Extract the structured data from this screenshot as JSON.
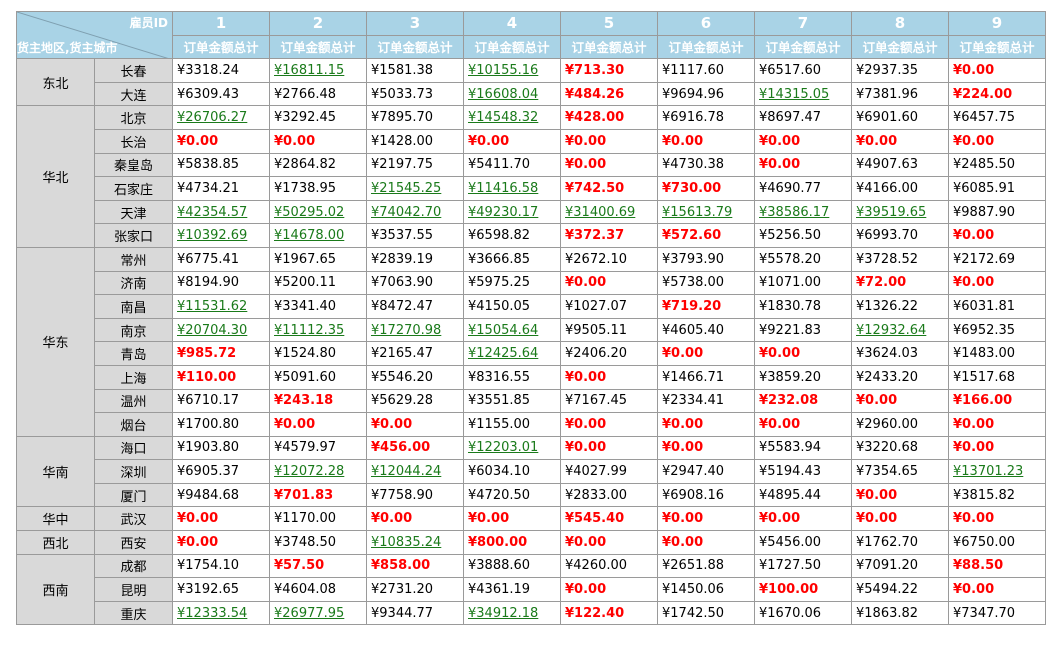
{
  "header": {
    "corner_top": "雇员ID",
    "corner_bottom": "货主地区,货主城市",
    "employee_ids": [
      "1",
      "2",
      "3",
      "4",
      "5",
      "6",
      "7",
      "8",
      "9"
    ],
    "measure_label": "订单金额总计"
  },
  "colors": {
    "header_bg": "#a9d3e6",
    "high": "#1a7a1a",
    "low": "#ff0000",
    "label_bg": "#d9d9d9"
  },
  "chart_data": {
    "type": "table",
    "columns": [
      "1",
      "2",
      "3",
      "4",
      "5",
      "6",
      "7",
      "8",
      "9"
    ],
    "regions": [
      {
        "name": "东北",
        "cities": [
          {
            "city": "长春",
            "values": [
              "¥3318.24",
              "¥16811.15",
              "¥1581.38",
              "¥10155.16",
              "¥713.30",
              "¥1117.60",
              "¥6517.60",
              "¥2937.35",
              "¥0.00"
            ],
            "styles": [
              "n",
              "h",
              "n",
              "h",
              "l",
              "n",
              "n",
              "n",
              "l"
            ]
          },
          {
            "city": "大连",
            "values": [
              "¥6309.43",
              "¥2766.48",
              "¥5033.73",
              "¥16608.04",
              "¥484.26",
              "¥9694.96",
              "¥14315.05",
              "¥7381.96",
              "¥224.00"
            ],
            "styles": [
              "n",
              "n",
              "n",
              "h",
              "l",
              "n",
              "h",
              "n",
              "l"
            ]
          }
        ]
      },
      {
        "name": "华北",
        "cities": [
          {
            "city": "北京",
            "values": [
              "¥26706.27",
              "¥3292.45",
              "¥7895.70",
              "¥14548.32",
              "¥428.00",
              "¥6916.78",
              "¥8697.47",
              "¥6901.60",
              "¥6457.75"
            ],
            "styles": [
              "h",
              "n",
              "n",
              "h",
              "l",
              "n",
              "n",
              "n",
              "n"
            ]
          },
          {
            "city": "长治",
            "values": [
              "¥0.00",
              "¥0.00",
              "¥1428.00",
              "¥0.00",
              "¥0.00",
              "¥0.00",
              "¥0.00",
              "¥0.00",
              "¥0.00"
            ],
            "styles": [
              "l",
              "l",
              "n",
              "l",
              "l",
              "l",
              "l",
              "l",
              "l"
            ]
          },
          {
            "city": "秦皇岛",
            "values": [
              "¥5838.85",
              "¥2864.82",
              "¥2197.75",
              "¥5411.70",
              "¥0.00",
              "¥4730.38",
              "¥0.00",
              "¥4907.63",
              "¥2485.50"
            ],
            "styles": [
              "n",
              "n",
              "n",
              "n",
              "l",
              "n",
              "l",
              "n",
              "n"
            ]
          },
          {
            "city": "石家庄",
            "values": [
              "¥4734.21",
              "¥1738.95",
              "¥21545.25",
              "¥11416.58",
              "¥742.50",
              "¥730.00",
              "¥4690.77",
              "¥4166.00",
              "¥6085.91"
            ],
            "styles": [
              "n",
              "n",
              "h",
              "h",
              "l",
              "l",
              "n",
              "n",
              "n"
            ]
          },
          {
            "city": "天津",
            "values": [
              "¥42354.57",
              "¥50295.02",
              "¥74042.70",
              "¥49230.17",
              "¥31400.69",
              "¥15613.79",
              "¥38586.17",
              "¥39519.65",
              "¥9887.90"
            ],
            "styles": [
              "h",
              "h",
              "h",
              "h",
              "h",
              "h",
              "h",
              "h",
              "n"
            ]
          },
          {
            "city": "张家口",
            "values": [
              "¥10392.69",
              "¥14678.00",
              "¥3537.55",
              "¥6598.82",
              "¥372.37",
              "¥572.60",
              "¥5256.50",
              "¥6993.70",
              "¥0.00"
            ],
            "styles": [
              "h",
              "h",
              "n",
              "n",
              "l",
              "l",
              "n",
              "n",
              "l"
            ]
          }
        ]
      },
      {
        "name": "华东",
        "cities": [
          {
            "city": "常州",
            "values": [
              "¥6775.41",
              "¥1967.65",
              "¥2839.19",
              "¥3666.85",
              "¥2672.10",
              "¥3793.90",
              "¥5578.20",
              "¥3728.52",
              "¥2172.69"
            ],
            "styles": [
              "n",
              "n",
              "n",
              "n",
              "n",
              "n",
              "n",
              "n",
              "n"
            ]
          },
          {
            "city": "济南",
            "values": [
              "¥8194.90",
              "¥5200.11",
              "¥7063.90",
              "¥5975.25",
              "¥0.00",
              "¥5738.00",
              "¥1071.00",
              "¥72.00",
              "¥0.00"
            ],
            "styles": [
              "n",
              "n",
              "n",
              "n",
              "l",
              "n",
              "n",
              "l",
              "l"
            ]
          },
          {
            "city": "南昌",
            "values": [
              "¥11531.62",
              "¥3341.40",
              "¥8472.47",
              "¥4150.05",
              "¥1027.07",
              "¥719.20",
              "¥1830.78",
              "¥1326.22",
              "¥6031.81"
            ],
            "styles": [
              "h",
              "n",
              "n",
              "n",
              "n",
              "l",
              "n",
              "n",
              "n"
            ]
          },
          {
            "city": "南京",
            "values": [
              "¥20704.30",
              "¥11112.35",
              "¥17270.98",
              "¥15054.64",
              "¥9505.11",
              "¥4605.40",
              "¥9221.83",
              "¥12932.64",
              "¥6952.35"
            ],
            "styles": [
              "h",
              "h",
              "h",
              "h",
              "n",
              "n",
              "n",
              "h",
              "n"
            ]
          },
          {
            "city": "青岛",
            "values": [
              "¥985.72",
              "¥1524.80",
              "¥2165.47",
              "¥12425.64",
              "¥2406.20",
              "¥0.00",
              "¥0.00",
              "¥3624.03",
              "¥1483.00"
            ],
            "styles": [
              "l",
              "n",
              "n",
              "h",
              "n",
              "l",
              "l",
              "n",
              "n"
            ]
          },
          {
            "city": "上海",
            "values": [
              "¥110.00",
              "¥5091.60",
              "¥5546.20",
              "¥8316.55",
              "¥0.00",
              "¥1466.71",
              "¥3859.20",
              "¥2433.20",
              "¥1517.68"
            ],
            "styles": [
              "l",
              "n",
              "n",
              "n",
              "l",
              "n",
              "n",
              "n",
              "n"
            ]
          },
          {
            "city": "温州",
            "values": [
              "¥6710.17",
              "¥243.18",
              "¥5629.28",
              "¥3551.85",
              "¥7167.45",
              "¥2334.41",
              "¥232.08",
              "¥0.00",
              "¥166.00"
            ],
            "styles": [
              "n",
              "l",
              "n",
              "n",
              "n",
              "n",
              "l",
              "l",
              "l"
            ]
          },
          {
            "city": "烟台",
            "values": [
              "¥1700.80",
              "¥0.00",
              "¥0.00",
              "¥1155.00",
              "¥0.00",
              "¥0.00",
              "¥0.00",
              "¥2960.00",
              "¥0.00"
            ],
            "styles": [
              "n",
              "l",
              "l",
              "n",
              "l",
              "l",
              "l",
              "n",
              "l"
            ]
          }
        ]
      },
      {
        "name": "华南",
        "cities": [
          {
            "city": "海口",
            "values": [
              "¥1903.80",
              "¥4579.97",
              "¥456.00",
              "¥12203.01",
              "¥0.00",
              "¥0.00",
              "¥5583.94",
              "¥3220.68",
              "¥0.00"
            ],
            "styles": [
              "n",
              "n",
              "l",
              "h",
              "l",
              "l",
              "n",
              "n",
              "l"
            ]
          },
          {
            "city": "深圳",
            "values": [
              "¥6905.37",
              "¥12072.28",
              "¥12044.24",
              "¥6034.10",
              "¥4027.99",
              "¥2947.40",
              "¥5194.43",
              "¥7354.65",
              "¥13701.23"
            ],
            "styles": [
              "n",
              "h",
              "h",
              "n",
              "n",
              "n",
              "n",
              "n",
              "h"
            ]
          },
          {
            "city": "厦门",
            "values": [
              "¥9484.68",
              "¥701.83",
              "¥7758.90",
              "¥4720.50",
              "¥2833.00",
              "¥6908.16",
              "¥4895.44",
              "¥0.00",
              "¥3815.82"
            ],
            "styles": [
              "n",
              "l",
              "n",
              "n",
              "n",
              "n",
              "n",
              "l",
              "n"
            ]
          }
        ]
      },
      {
        "name": "华中",
        "cities": [
          {
            "city": "武汉",
            "values": [
              "¥0.00",
              "¥1170.00",
              "¥0.00",
              "¥0.00",
              "¥545.40",
              "¥0.00",
              "¥0.00",
              "¥0.00",
              "¥0.00"
            ],
            "styles": [
              "l",
              "n",
              "l",
              "l",
              "l",
              "l",
              "l",
              "l",
              "l"
            ]
          }
        ]
      },
      {
        "name": "西北",
        "cities": [
          {
            "city": "西安",
            "values": [
              "¥0.00",
              "¥3748.50",
              "¥10835.24",
              "¥800.00",
              "¥0.00",
              "¥0.00",
              "¥5456.00",
              "¥1762.70",
              "¥6750.00"
            ],
            "styles": [
              "l",
              "n",
              "h",
              "l",
              "l",
              "l",
              "n",
              "n",
              "n"
            ]
          }
        ]
      },
      {
        "name": "西南",
        "cities": [
          {
            "city": "成都",
            "values": [
              "¥1754.10",
              "¥57.50",
              "¥858.00",
              "¥3888.60",
              "¥4260.00",
              "¥2651.88",
              "¥1727.50",
              "¥7091.20",
              "¥88.50"
            ],
            "styles": [
              "n",
              "l",
              "l",
              "n",
              "n",
              "n",
              "n",
              "n",
              "l"
            ]
          },
          {
            "city": "昆明",
            "values": [
              "¥3192.65",
              "¥4604.08",
              "¥2731.20",
              "¥4361.19",
              "¥0.00",
              "¥1450.06",
              "¥100.00",
              "¥5494.22",
              "¥0.00"
            ],
            "styles": [
              "n",
              "n",
              "n",
              "n",
              "l",
              "n",
              "l",
              "n",
              "l"
            ]
          },
          {
            "city": "重庆",
            "values": [
              "¥12333.54",
              "¥26977.95",
              "¥9344.77",
              "¥34912.18",
              "¥122.40",
              "¥1742.50",
              "¥1670.06",
              "¥1863.82",
              "¥7347.70"
            ],
            "styles": [
              "h",
              "h",
              "n",
              "h",
              "l",
              "n",
              "n",
              "n",
              "n"
            ]
          }
        ]
      }
    ]
  }
}
